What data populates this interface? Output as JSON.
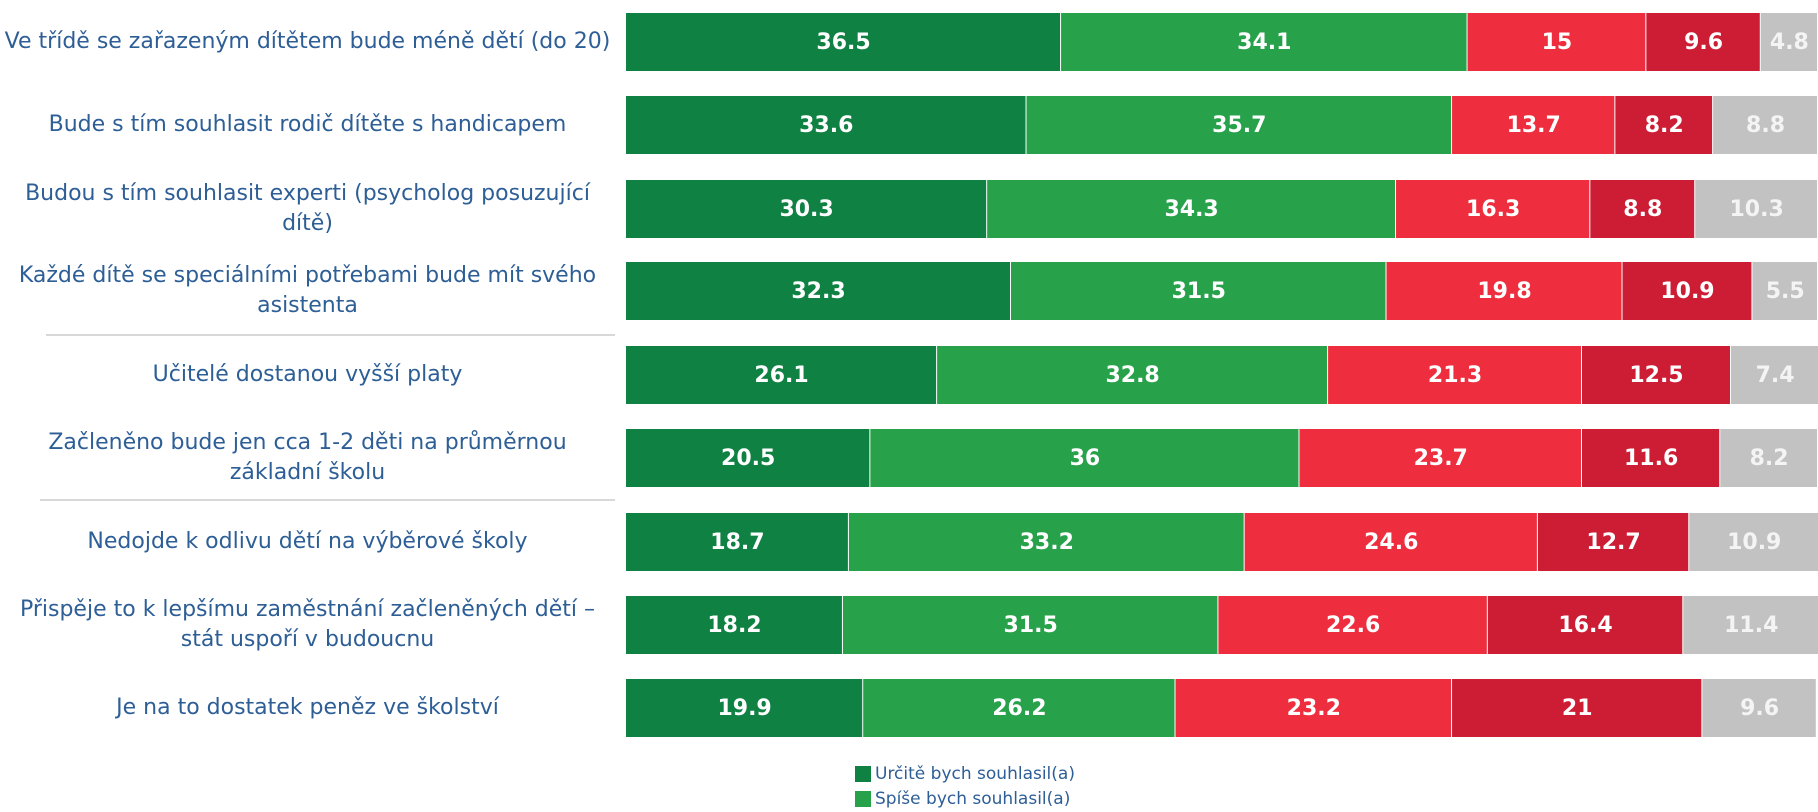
{
  "chart_data": {
    "type": "stacked-bar",
    "orientation": "horizontal",
    "categories": [
      "Ve třídě se zařazeným dítětem bude méně dětí (do 20)",
      "Bude s tím souhlasit rodič dítěte s handicapem",
      "Budou s tím souhlasit experti (psycholog posuzující dítě)",
      "Každé dítě se speciálními potřebami bude mít svého asistenta",
      "Učitelé dostanou vyšší platy",
      "Začleněno bude jen cca 1-2 děti na průměrnou základní školu",
      "Nedojde k odlivu dětí na výběrové školy",
      "Přispěje to k lepšímu zaměstnání začleněných dětí – stát uspoří v budoucnu",
      "Je na to dostatek peněz ve školství"
    ],
    "series": [
      {
        "name": "Určitě bych souhlasil(a)",
        "color": "#0f8142",
        "values": [
          36.5,
          33.6,
          30.3,
          32.3,
          26.1,
          20.5,
          18.7,
          18.2,
          19.9
        ]
      },
      {
        "name": "Spíše bych souhlasil(a)",
        "color": "#27a24b",
        "values": [
          34.1,
          35.7,
          34.3,
          31.5,
          32.8,
          36,
          33.2,
          31.5,
          26.2
        ]
      },
      {
        "color": "#ee2e3e",
        "values": [
          15,
          13.7,
          16.3,
          19.8,
          21.3,
          23.7,
          24.6,
          22.6,
          23.2
        ]
      },
      {
        "color": "#cc1d35",
        "values": [
          9.6,
          8.2,
          8.8,
          10.9,
          12.5,
          11.6,
          12.7,
          16.4,
          21
        ]
      },
      {
        "color": "#c2c2c2",
        "values": [
          4.8,
          8.8,
          10.3,
          5.5,
          7.4,
          8.2,
          10.9,
          11.4,
          9.6
        ]
      }
    ],
    "xlim": [
      0,
      100
    ]
  }
}
